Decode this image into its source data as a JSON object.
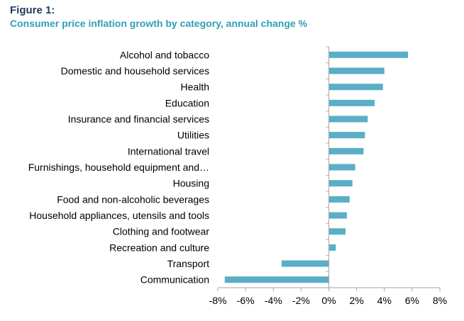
{
  "figure": {
    "label": "Figure 1:",
    "title": "Consumer price inflation growth by category, annual change %"
  },
  "colors": {
    "bar": "#5aaec5",
    "axis": "#a6a6a6",
    "label_blue": "#1f3d5c",
    "title_teal": "#2f9fb5"
  },
  "chart_data": {
    "type": "bar",
    "orientation": "horizontal",
    "title": "Consumer price inflation growth by category, annual change %",
    "xlabel": "",
    "ylabel": "",
    "xlim": [
      -8,
      8
    ],
    "x_ticks": [
      -8,
      -6,
      -4,
      -2,
      0,
      2,
      4,
      6,
      8
    ],
    "x_tick_labels": [
      "-8%",
      "-6%",
      "-4%",
      "-2%",
      "0%",
      "2%",
      "4%",
      "6%",
      "8%"
    ],
    "grid": false,
    "categories": [
      "Alcohol and tobacco",
      "Domestic and household services",
      "Health",
      "Education",
      "Insurance and financial services",
      "Utilities",
      "International travel",
      "Furnishings, household equipment and…",
      "Housing",
      "Food and non-alcoholic beverages",
      "Household appliances, utensils and tools",
      "Clothing and footwear",
      "Recreation and culture",
      "Transport",
      "Communication"
    ],
    "values": [
      5.7,
      4.0,
      3.9,
      3.3,
      2.8,
      2.6,
      2.5,
      1.9,
      1.7,
      1.5,
      1.3,
      1.2,
      0.5,
      -3.4,
      -7.5
    ]
  }
}
